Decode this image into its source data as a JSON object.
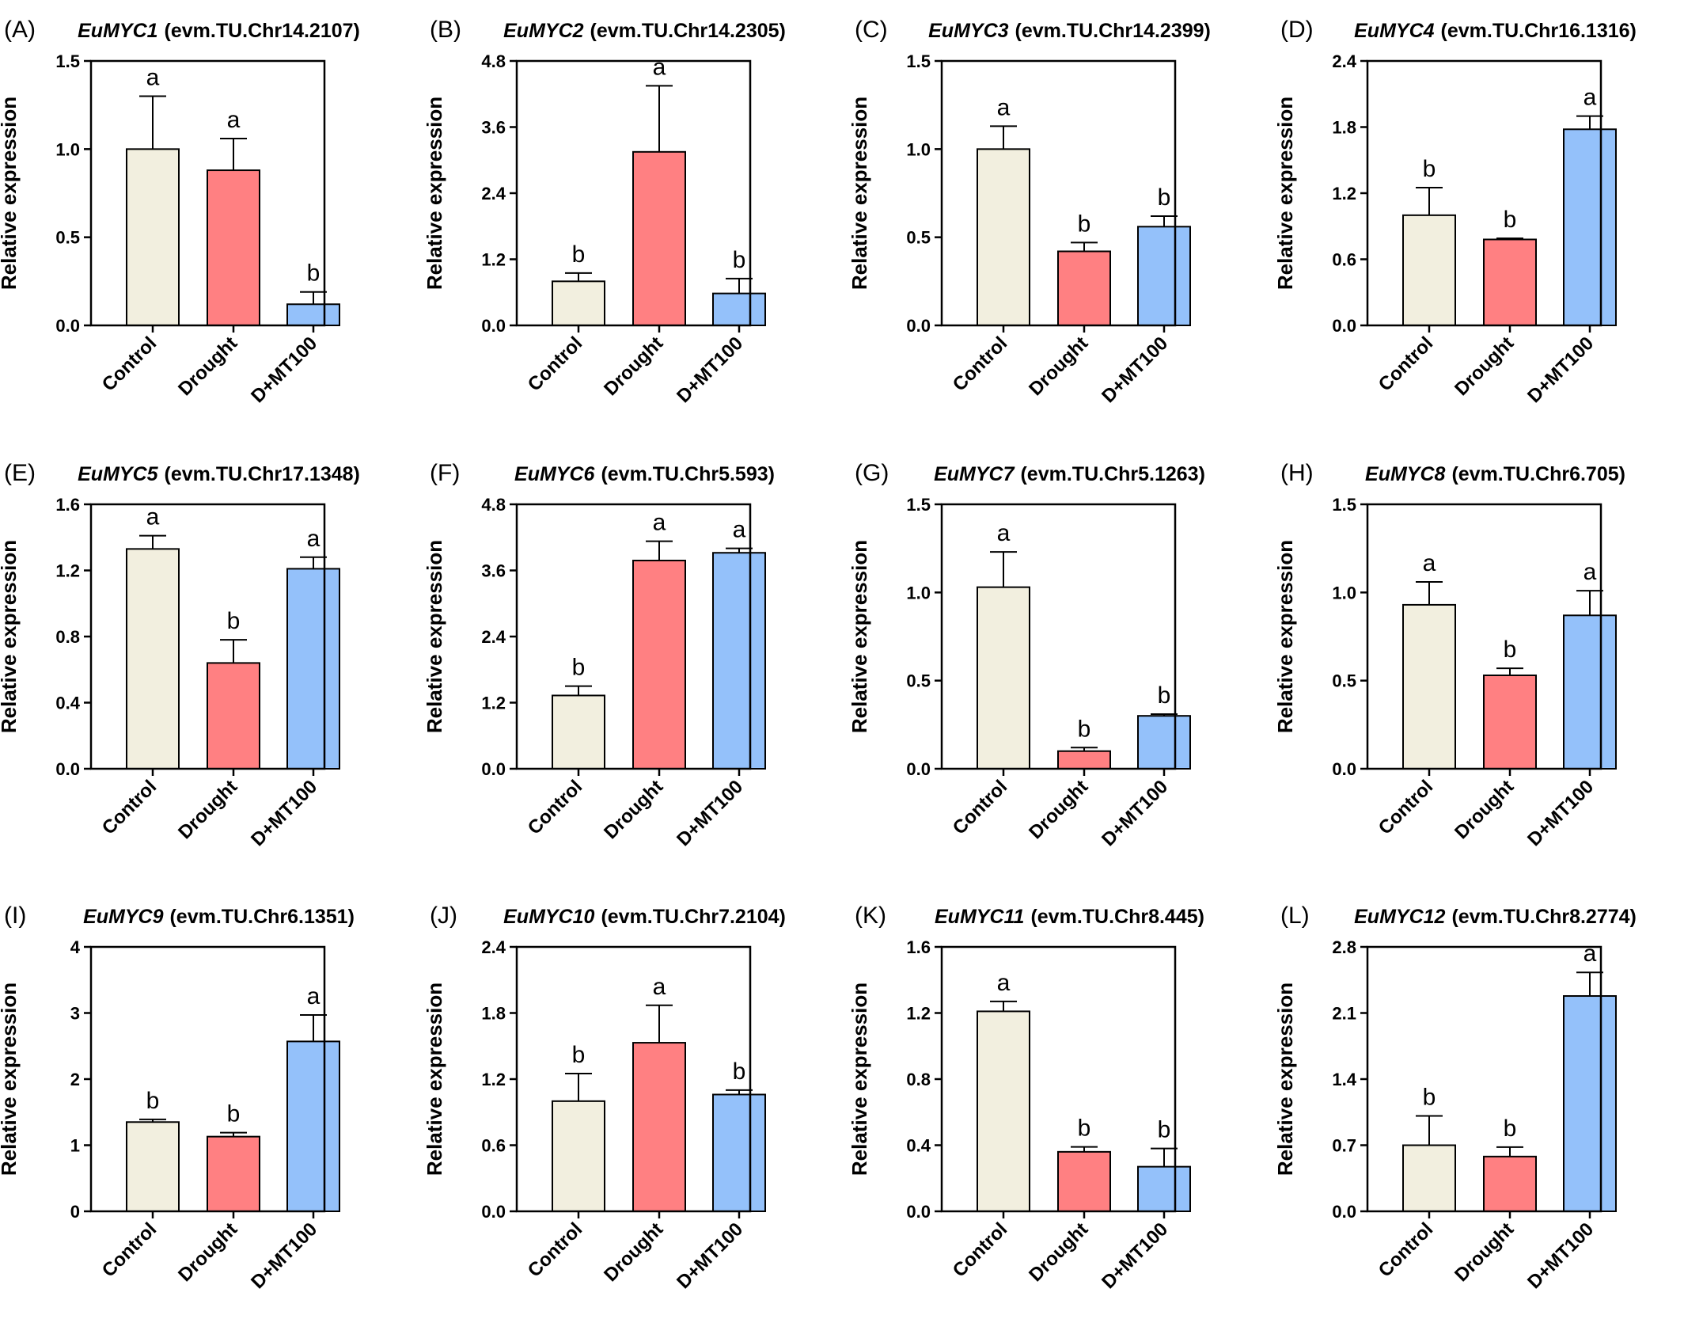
{
  "colors": {
    "control": "#F2EFDF",
    "drought": "#FF8082",
    "dmt100": "#94C1FA",
    "stroke": "#000000"
  },
  "categories": [
    "Control",
    "Drought",
    "D+MT100"
  ],
  "ylabel": "Relative expression",
  "chart_data": [
    {
      "type": "bar",
      "panel_label": "(A)",
      "gene": "EuMYC1",
      "gene_id": "(evm.TU.Chr14.2107)",
      "ylabel": "Relative expression",
      "categories": [
        "Control",
        "Drought",
        "D+MT100"
      ],
      "values": [
        1.0,
        0.88,
        0.12
      ],
      "errors": [
        0.3,
        0.18,
        0.07
      ],
      "letters": [
        "a",
        "a",
        "b"
      ],
      "ylim": [
        0,
        1.5
      ],
      "yticks": [
        "0.0",
        "0.5",
        "1.0",
        "1.5"
      ]
    },
    {
      "type": "bar",
      "panel_label": "(B)",
      "gene": "EuMYC2",
      "gene_id": "(evm.TU.Chr14.2305)",
      "ylabel": "Relative expression",
      "categories": [
        "Control",
        "Drought",
        "D+MT100"
      ],
      "values": [
        0.8,
        3.15,
        0.58
      ],
      "errors": [
        0.15,
        1.2,
        0.27
      ],
      "letters": [
        "b",
        "a",
        "b"
      ],
      "ylim": [
        0,
        4.8
      ],
      "yticks": [
        "0.0",
        "1.2",
        "2.4",
        "3.6",
        "4.8"
      ]
    },
    {
      "type": "bar",
      "panel_label": "(C)",
      "gene": "EuMYC3",
      "gene_id": "(evm.TU.Chr14.2399)",
      "ylabel": "Relative expression",
      "categories": [
        "Control",
        "Drought",
        "D+MT100"
      ],
      "values": [
        1.0,
        0.42,
        0.56
      ],
      "errors": [
        0.13,
        0.05,
        0.06
      ],
      "letters": [
        "a",
        "b",
        "b"
      ],
      "ylim": [
        0,
        1.5
      ],
      "yticks": [
        "0.0",
        "0.5",
        "1.0",
        "1.5"
      ]
    },
    {
      "type": "bar",
      "panel_label": "(D)",
      "gene": "EuMYC4",
      "gene_id": "(evm.TU.Chr16.1316)",
      "ylabel": "Relative expression",
      "categories": [
        "Control",
        "Drought",
        "D+MT100"
      ],
      "values": [
        1.0,
        0.78,
        1.78
      ],
      "errors": [
        0.25,
        0.01,
        0.12
      ],
      "letters": [
        "b",
        "b",
        "a"
      ],
      "ylim": [
        0,
        2.4
      ],
      "yticks": [
        "0.0",
        "0.6",
        "1.2",
        "1.8",
        "2.4"
      ]
    },
    {
      "type": "bar",
      "panel_label": "(E)",
      "gene": "EuMYC5",
      "gene_id": "(evm.TU.Chr17.1348)",
      "ylabel": "Relative expression",
      "categories": [
        "Control",
        "Drought",
        "D+MT100"
      ],
      "values": [
        1.33,
        0.64,
        1.21
      ],
      "errors": [
        0.08,
        0.14,
        0.07
      ],
      "letters": [
        "a",
        "b",
        "a"
      ],
      "ylim": [
        0,
        1.6
      ],
      "yticks": [
        "0.0",
        "0.4",
        "0.8",
        "1.2",
        "1.6"
      ]
    },
    {
      "type": "bar",
      "panel_label": "(F)",
      "gene": "EuMYC6",
      "gene_id": "(evm.TU.Chr5.593)",
      "ylabel": "Relative expression",
      "categories": [
        "Control",
        "Drought",
        "D+MT100"
      ],
      "values": [
        1.33,
        3.78,
        3.92
      ],
      "errors": [
        0.17,
        0.35,
        0.08
      ],
      "letters": [
        "b",
        "a",
        "a"
      ],
      "ylim": [
        0,
        4.8
      ],
      "yticks": [
        "0.0",
        "1.2",
        "2.4",
        "3.6",
        "4.8"
      ]
    },
    {
      "type": "bar",
      "panel_label": "(G)",
      "gene": "EuMYC7",
      "gene_id": "(evm.TU.Chr5.1263)",
      "ylabel": "Relative expression",
      "categories": [
        "Control",
        "Drought",
        "D+MT100"
      ],
      "values": [
        1.03,
        0.1,
        0.3
      ],
      "errors": [
        0.2,
        0.02,
        0.01
      ],
      "letters": [
        "a",
        "b",
        "b"
      ],
      "ylim": [
        0,
        1.5
      ],
      "yticks": [
        "0.0",
        "0.5",
        "1.0",
        "1.5"
      ]
    },
    {
      "type": "bar",
      "panel_label": "(H)",
      "gene": "EuMYC8",
      "gene_id": "(evm.TU.Chr6.705)",
      "ylabel": "Relative expression",
      "categories": [
        "Control",
        "Drought",
        "D+MT100"
      ],
      "values": [
        0.93,
        0.53,
        0.87
      ],
      "errors": [
        0.13,
        0.04,
        0.14
      ],
      "letters": [
        "a",
        "b",
        "a"
      ],
      "ylim": [
        0,
        1.5
      ],
      "yticks": [
        "0.0",
        "0.5",
        "1.0",
        "1.5"
      ]
    },
    {
      "type": "bar",
      "panel_label": "(I)",
      "gene": "EuMYC9",
      "gene_id": "(evm.TU.Chr6.1351)",
      "ylabel": "Relative expression",
      "categories": [
        "Control",
        "Drought",
        "D+MT100"
      ],
      "values": [
        1.35,
        1.13,
        2.57
      ],
      "errors": [
        0.04,
        0.06,
        0.4
      ],
      "letters": [
        "b",
        "b",
        "a"
      ],
      "ylim": [
        0,
        4
      ],
      "yticks": [
        "0",
        "1",
        "2",
        "3",
        "4"
      ]
    },
    {
      "type": "bar",
      "panel_label": "(J)",
      "gene": "EuMYC10",
      "gene_id": "(evm.TU.Chr7.2104)",
      "ylabel": "Relative expression",
      "categories": [
        "Control",
        "Drought",
        "D+MT100"
      ],
      "values": [
        1.0,
        1.53,
        1.06
      ],
      "errors": [
        0.25,
        0.34,
        0.04
      ],
      "letters": [
        "b",
        "a",
        "b"
      ],
      "ylim": [
        0,
        2.4
      ],
      "yticks": [
        "0.0",
        "0.6",
        "1.2",
        "1.8",
        "2.4"
      ]
    },
    {
      "type": "bar",
      "panel_label": "(K)",
      "gene": "EuMYC11",
      "gene_id": "(evm.TU.Chr8.445)",
      "ylabel": "Relative expression",
      "categories": [
        "Control",
        "Drought",
        "D+MT100"
      ],
      "values": [
        1.21,
        0.36,
        0.27
      ],
      "errors": [
        0.06,
        0.03,
        0.11
      ],
      "letters": [
        "a",
        "b",
        "b"
      ],
      "ylim": [
        0,
        1.6
      ],
      "yticks": [
        "0.0",
        "0.4",
        "0.8",
        "1.2",
        "1.6"
      ]
    },
    {
      "type": "bar",
      "panel_label": "(L)",
      "gene": "EuMYC12",
      "gene_id": "(evm.TU.Chr8.2774)",
      "ylabel": "Relative expression",
      "categories": [
        "Control",
        "Drought",
        "D+MT100"
      ],
      "values": [
        0.7,
        0.58,
        2.28
      ],
      "errors": [
        0.31,
        0.1,
        0.25
      ],
      "letters": [
        "b",
        "b",
        "a"
      ],
      "ylim": [
        0,
        2.8
      ],
      "yticks": [
        "0.0",
        "0.7",
        "1.4",
        "2.1",
        "2.8"
      ]
    }
  ]
}
